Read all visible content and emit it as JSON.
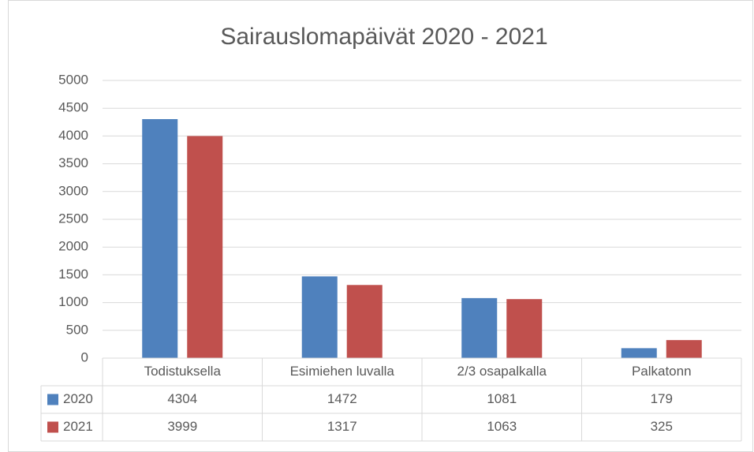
{
  "chart_data": {
    "type": "bar",
    "title": "Sairauslomapäivät 2020 - 2021",
    "categories": [
      "Todistuksella",
      "Esimiehen luvalla",
      "2/3 osapalkalla",
      "Palkatonn"
    ],
    "series": [
      {
        "name": "2020",
        "color": "#4f81bd",
        "values": [
          4304,
          1472,
          1081,
          179
        ]
      },
      {
        "name": "2021",
        "color": "#c0504d",
        "values": [
          3999,
          1317,
          1063,
          325
        ]
      }
    ],
    "ylim": [
      0,
      5000
    ],
    "yticks": [
      0,
      500,
      1000,
      1500,
      2000,
      2500,
      3000,
      3500,
      4000,
      4500,
      5000
    ],
    "grid": true,
    "data_table": true
  }
}
